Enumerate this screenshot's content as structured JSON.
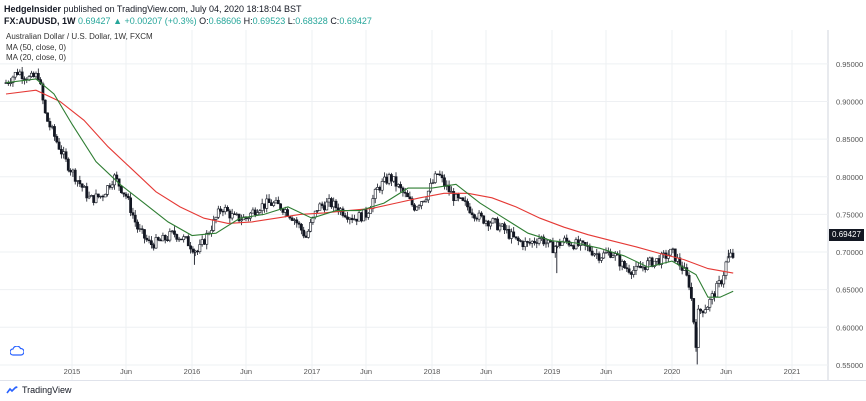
{
  "header": {
    "author": "HedgeInsider",
    "published_text": "published on TradingView.com, July 04, 2020 18:18:04 BST",
    "symbol": "FX:AUDUSD, 1W",
    "last": "0.69427",
    "change_icon": "triangle-up-icon",
    "change": "+0.00207 (+0.3%)",
    "open_label": "O:",
    "open": "0.68606",
    "high_label": "H:",
    "high": "0.69523",
    "low_label": "L:",
    "low": "0.68328",
    "close_label": "C:",
    "close": "0.69427"
  },
  "legend": {
    "title": "Australian Dollar / U.S. Dollar, 1W, FXCM",
    "ma50": "MA (50, close, 0)",
    "ma20": "MA (20, close, 0)"
  },
  "price_label": "0.69427",
  "footer": {
    "brand": "TradingView",
    "logo_icon": "tradingview-logo-icon"
  },
  "settings_icon": "cloud-icon",
  "colors": {
    "up": "#131722",
    "down": "#131722",
    "ma50": "#e53935",
    "ma20": "#2e7d32",
    "grid": "#eef0f3",
    "axis_text": "#555555"
  },
  "chart_data": {
    "type": "candlestick",
    "x_labels": [
      "2015",
      "Jun",
      "2016",
      "Jun",
      "2017",
      "Jun",
      "2018",
      "Jun",
      "2019",
      "Jun",
      "2020",
      "Jun",
      "2021"
    ],
    "x_label_times": [
      2015.0,
      2015.45,
      2016.0,
      2016.45,
      2017.0,
      2017.45,
      2018.0,
      2018.45,
      2019.0,
      2019.45,
      2020.0,
      2020.45,
      2021.0
    ],
    "y_ticks": [
      "0.95000",
      "0.90000",
      "0.85000",
      "0.80000",
      "0.75000",
      "0.70000",
      "0.65000",
      "0.60000",
      "0.55000"
    ],
    "y_tick_values": [
      0.95,
      0.9,
      0.85,
      0.8,
      0.75,
      0.7,
      0.65,
      0.6,
      0.55
    ],
    "ylim": [
      0.53,
      0.995
    ],
    "xlim": [
      2014.4,
      2021.3
    ],
    "close_path": [
      [
        2014.45,
        0.925
      ],
      [
        2014.55,
        0.94
      ],
      [
        2014.65,
        0.93
      ],
      [
        2014.72,
        0.935
      ],
      [
        2014.78,
        0.88
      ],
      [
        2014.85,
        0.855
      ],
      [
        2014.95,
        0.82
      ],
      [
        2015.05,
        0.795
      ],
      [
        2015.15,
        0.77
      ],
      [
        2015.25,
        0.775
      ],
      [
        2015.35,
        0.8
      ],
      [
        2015.45,
        0.775
      ],
      [
        2015.55,
        0.73
      ],
      [
        2015.65,
        0.71
      ],
      [
        2015.75,
        0.715
      ],
      [
        2015.85,
        0.725
      ],
      [
        2015.95,
        0.715
      ],
      [
        2016.05,
        0.7
      ],
      [
        2016.15,
        0.73
      ],
      [
        2016.25,
        0.76
      ],
      [
        2016.35,
        0.745
      ],
      [
        2016.45,
        0.745
      ],
      [
        2016.55,
        0.76
      ],
      [
        2016.65,
        0.765
      ],
      [
        2016.75,
        0.76
      ],
      [
        2016.85,
        0.745
      ],
      [
        2016.95,
        0.72
      ],
      [
        2017.05,
        0.76
      ],
      [
        2017.15,
        0.765
      ],
      [
        2017.25,
        0.755
      ],
      [
        2017.35,
        0.745
      ],
      [
        2017.45,
        0.75
      ],
      [
        2017.55,
        0.785
      ],
      [
        2017.65,
        0.8
      ],
      [
        2017.75,
        0.78
      ],
      [
        2017.85,
        0.76
      ],
      [
        2017.95,
        0.775
      ],
      [
        2018.05,
        0.805
      ],
      [
        2018.1,
        0.79
      ],
      [
        2018.2,
        0.77
      ],
      [
        2018.3,
        0.76
      ],
      [
        2018.4,
        0.745
      ],
      [
        2018.5,
        0.74
      ],
      [
        2018.6,
        0.73
      ],
      [
        2018.7,
        0.715
      ],
      [
        2018.8,
        0.71
      ],
      [
        2018.9,
        0.72
      ],
      [
        2019.0,
        0.705
      ],
      [
        2019.1,
        0.715
      ],
      [
        2019.2,
        0.71
      ],
      [
        2019.3,
        0.705
      ],
      [
        2019.4,
        0.695
      ],
      [
        2019.5,
        0.7
      ],
      [
        2019.6,
        0.68
      ],
      [
        2019.7,
        0.675
      ],
      [
        2019.8,
        0.685
      ],
      [
        2019.9,
        0.69
      ],
      [
        2020.0,
        0.7
      ],
      [
        2020.1,
        0.675
      ],
      [
        2020.15,
        0.655
      ],
      [
        2020.2,
        0.58
      ],
      [
        2020.22,
        0.62
      ],
      [
        2020.3,
        0.63
      ],
      [
        2020.35,
        0.645
      ],
      [
        2020.42,
        0.665
      ],
      [
        2020.45,
        0.685
      ],
      [
        2020.48,
        0.695
      ],
      [
        2020.51,
        0.69427
      ]
    ],
    "spikes": [
      [
        2016.02,
        0.683
      ],
      [
        2019.04,
        0.672
      ],
      [
        2020.21,
        0.5507
      ],
      [
        2020.47,
        0.703
      ]
    ],
    "series": [
      {
        "name": "MA (50, close, 0)",
        "values": [
          [
            2014.45,
            0.91
          ],
          [
            2014.7,
            0.915
          ],
          [
            2014.9,
            0.9
          ],
          [
            2015.1,
            0.875
          ],
          [
            2015.3,
            0.84
          ],
          [
            2015.5,
            0.81
          ],
          [
            2015.7,
            0.78
          ],
          [
            2015.9,
            0.76
          ],
          [
            2016.1,
            0.745
          ],
          [
            2016.3,
            0.738
          ],
          [
            2016.5,
            0.74
          ],
          [
            2016.7,
            0.745
          ],
          [
            2016.9,
            0.75
          ],
          [
            2017.1,
            0.752
          ],
          [
            2017.3,
            0.755
          ],
          [
            2017.5,
            0.758
          ],
          [
            2017.7,
            0.765
          ],
          [
            2017.9,
            0.772
          ],
          [
            2018.1,
            0.778
          ],
          [
            2018.3,
            0.778
          ],
          [
            2018.5,
            0.772
          ],
          [
            2018.7,
            0.76
          ],
          [
            2018.9,
            0.745
          ],
          [
            2019.1,
            0.733
          ],
          [
            2019.3,
            0.723
          ],
          [
            2019.5,
            0.715
          ],
          [
            2019.7,
            0.707
          ],
          [
            2019.9,
            0.698
          ],
          [
            2020.1,
            0.69
          ],
          [
            2020.3,
            0.678
          ],
          [
            2020.51,
            0.672
          ]
        ]
      },
      {
        "name": "MA (20, close, 0)",
        "values": [
          [
            2014.45,
            0.925
          ],
          [
            2014.7,
            0.93
          ],
          [
            2014.85,
            0.91
          ],
          [
            2015.0,
            0.87
          ],
          [
            2015.2,
            0.82
          ],
          [
            2015.4,
            0.79
          ],
          [
            2015.6,
            0.765
          ],
          [
            2015.8,
            0.74
          ],
          [
            2016.0,
            0.722
          ],
          [
            2016.2,
            0.725
          ],
          [
            2016.4,
            0.745
          ],
          [
            2016.6,
            0.75
          ],
          [
            2016.8,
            0.76
          ],
          [
            2017.0,
            0.745
          ],
          [
            2017.2,
            0.755
          ],
          [
            2017.4,
            0.755
          ],
          [
            2017.6,
            0.765
          ],
          [
            2017.8,
            0.785
          ],
          [
            2018.0,
            0.785
          ],
          [
            2018.2,
            0.79
          ],
          [
            2018.4,
            0.765
          ],
          [
            2018.6,
            0.745
          ],
          [
            2018.8,
            0.725
          ],
          [
            2019.0,
            0.715
          ],
          [
            2019.2,
            0.712
          ],
          [
            2019.4,
            0.705
          ],
          [
            2019.6,
            0.695
          ],
          [
            2019.8,
            0.68
          ],
          [
            2020.0,
            0.688
          ],
          [
            2020.2,
            0.67
          ],
          [
            2020.3,
            0.64
          ],
          [
            2020.4,
            0.64
          ],
          [
            2020.51,
            0.648
          ]
        ]
      }
    ]
  }
}
